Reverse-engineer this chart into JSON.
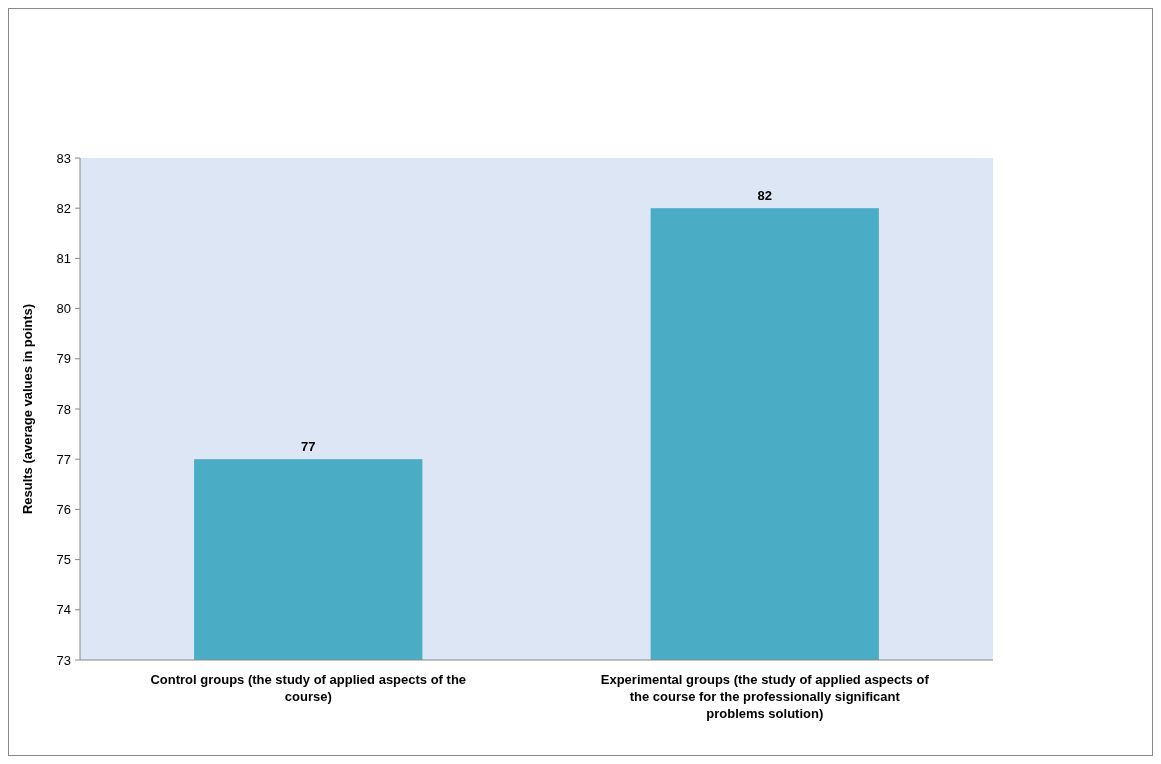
{
  "chart_data": {
    "type": "bar",
    "ylabel": "Results (average values in points)",
    "categories": [
      "Control groups (the study of applied aspects of the course)",
      "Experimental groups (the study of applied aspects of the course for the professionally significant problems solution)"
    ],
    "values": [
      77,
      82
    ],
    "color": "#4bacc6",
    "data_labels": true,
    "ylim": [
      73,
      83
    ],
    "yticks": [
      73,
      74,
      75,
      76,
      77,
      78,
      79,
      80,
      81,
      82,
      83
    ],
    "grid": false
  }
}
